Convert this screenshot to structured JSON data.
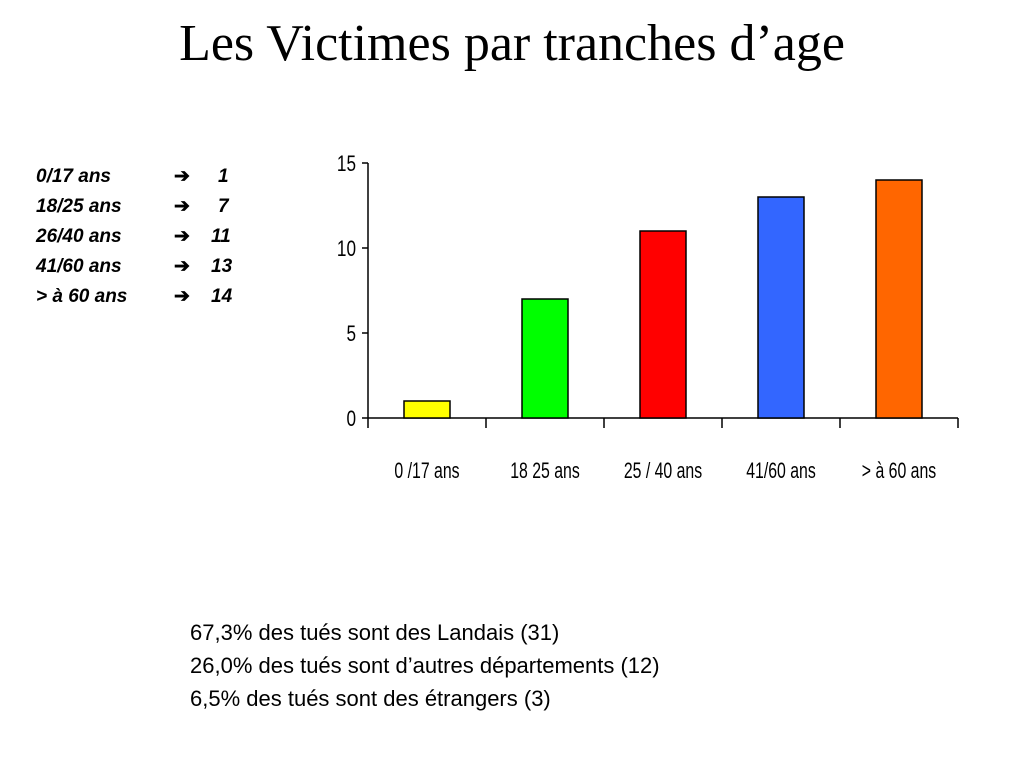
{
  "title": "Les Victimes par tranches d’age",
  "legend_list": [
    {
      "label": "0/17 ans",
      "arrow": "➔",
      "value": "1"
    },
    {
      "label": "18/25 ans",
      "arrow": "➔",
      "value": "7"
    },
    {
      "label": "26/40 ans",
      "arrow": "➔",
      "value": "11"
    },
    {
      "label": "41/60 ans",
      "arrow": "➔",
      "value": "13"
    },
    {
      "label": "> à 60 ans",
      "arrow": "➔",
      "value": "14"
    }
  ],
  "notes": [
    "67,3% des tués sont des Landais (31)",
    "26,0% des tués sont d’autres départements (12)",
    "6,5% des tués sont des étrangers (3)"
  ],
  "chart_data": {
    "type": "bar",
    "categories": [
      "0 /17 ans",
      "18 25 ans",
      "25 / 40 ans",
      "41/60 ans",
      "> à 60 ans"
    ],
    "values": [
      1,
      7,
      11,
      13,
      14
    ],
    "colors": [
      "#ffff00",
      "#00ff00",
      "#ff0000",
      "#3366ff",
      "#ff6600"
    ],
    "ylim": [
      0,
      15
    ],
    "yticks": [
      0,
      5,
      10,
      15
    ],
    "grid": false,
    "title": "",
    "xlabel": "",
    "ylabel": ""
  }
}
